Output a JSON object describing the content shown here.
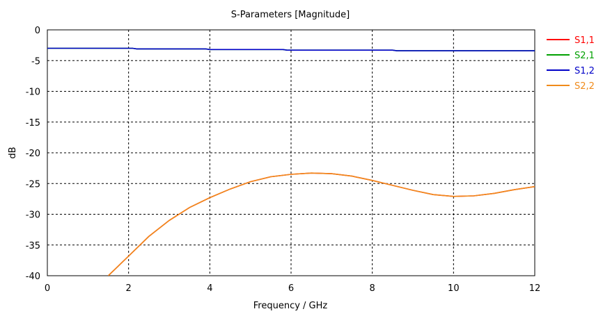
{
  "chart_data": {
    "type": "line",
    "title": "S-Parameters [Magnitude]",
    "xlabel": "Frequency / GHz",
    "ylabel": "dB",
    "xlim": [
      0,
      12
    ],
    "ylim": [
      -40,
      0
    ],
    "xticks": [
      0,
      2,
      4,
      6,
      8,
      10,
      12
    ],
    "yticks": [
      0,
      -5,
      -10,
      -15,
      -20,
      -25,
      -30,
      -35,
      -40
    ],
    "grid": true,
    "legend_position": "right",
    "series": [
      {
        "name": "S1,1",
        "color": "#ff0000",
        "x": [
          1.5,
          2.0,
          2.5,
          3.0,
          3.5,
          4.0,
          4.5,
          5.0,
          5.5,
          6.0,
          6.5,
          7.0,
          7.5,
          8.0,
          8.5,
          9.0,
          9.5,
          10.0,
          10.5,
          11.0,
          11.5,
          12.0
        ],
        "y": [
          -40.0,
          -36.8,
          -33.6,
          -31.0,
          -28.9,
          -27.3,
          -25.9,
          -24.7,
          -23.9,
          -23.5,
          -23.3,
          -23.4,
          -23.8,
          -24.5,
          -25.3,
          -26.1,
          -26.8,
          -27.1,
          -27.0,
          -26.6,
          -26.0,
          -25.5
        ]
      },
      {
        "name": "S2,1",
        "color": "#00a000",
        "x": [
          0,
          2.1,
          2.2,
          3.9,
          4.0,
          5.8,
          5.9,
          8.5,
          8.6,
          10.0,
          12.0
        ],
        "y": [
          -3.0,
          -3.0,
          -3.1,
          -3.1,
          -3.2,
          -3.2,
          -3.3,
          -3.3,
          -3.4,
          -3.4,
          -3.4
        ]
      },
      {
        "name": "S1,2",
        "color": "#0000c8",
        "x": [
          0,
          2.1,
          2.2,
          3.9,
          4.0,
          5.8,
          5.9,
          8.5,
          8.6,
          10.0,
          12.0
        ],
        "y": [
          -3.0,
          -3.0,
          -3.1,
          -3.1,
          -3.2,
          -3.2,
          -3.3,
          -3.3,
          -3.4,
          -3.4,
          -3.4
        ]
      },
      {
        "name": "S2,2",
        "color": "#f08a1a",
        "x": [
          1.5,
          2.0,
          2.5,
          3.0,
          3.5,
          4.0,
          4.5,
          5.0,
          5.5,
          6.0,
          6.5,
          7.0,
          7.5,
          8.0,
          8.5,
          9.0,
          9.5,
          10.0,
          10.5,
          11.0,
          11.5,
          12.0
        ],
        "y": [
          -40.0,
          -36.8,
          -33.6,
          -31.0,
          -28.9,
          -27.3,
          -25.9,
          -24.7,
          -23.9,
          -23.5,
          -23.3,
          -23.4,
          -23.8,
          -24.5,
          -25.3,
          -26.1,
          -26.8,
          -27.1,
          -27.0,
          -26.6,
          -26.0,
          -25.5
        ]
      }
    ]
  }
}
